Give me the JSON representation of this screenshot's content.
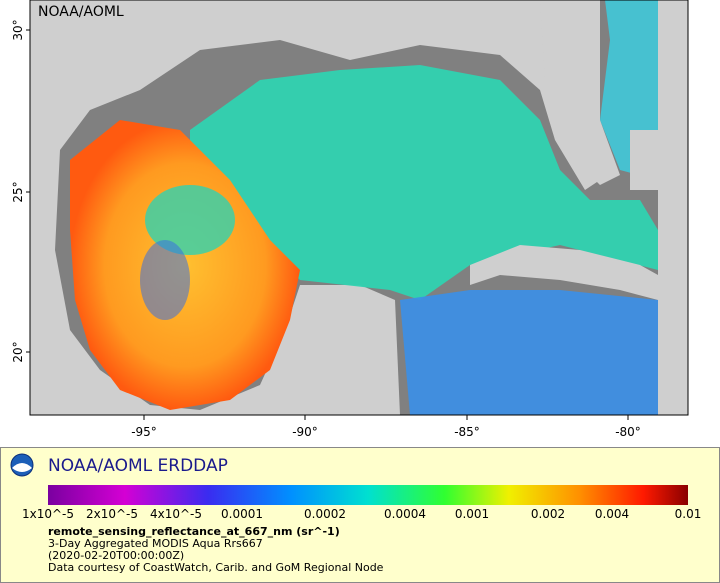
{
  "map": {
    "watermark": "NOAA/AOML",
    "lat_ticks": [
      "30°",
      "25°",
      "20°"
    ],
    "lon_ticks": [
      "-95°",
      "-90°",
      "-85°",
      "-80°"
    ]
  },
  "legend": {
    "title": "NOAA/AOML ERDDAP",
    "colorbar_ticks": [
      "1x10^-5",
      "2x10^-5",
      "4x10^-5",
      "0.0001",
      "0.0002",
      "0.0004",
      "0.001",
      "0.002",
      "0.004",
      "0.01"
    ],
    "variable": "remote_sensing_reflectance_at_667_nm (sr^-1)",
    "lines": [
      "3-Day Aggregated MODIS Aqua Rrs667",
      "(2020-02-20T00:00:00Z)",
      "Data courtesy of CoastWatch, Carib. and GoM Regional Node"
    ]
  }
}
